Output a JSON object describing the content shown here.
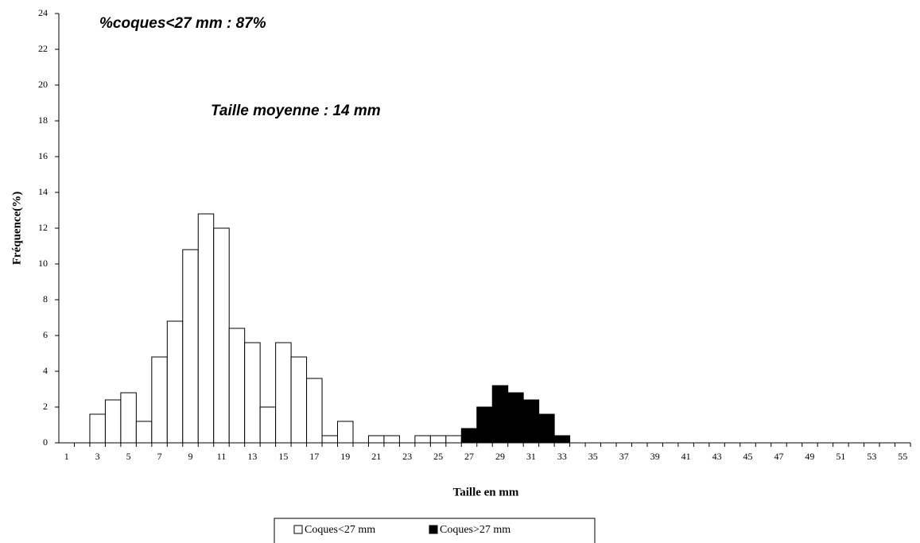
{
  "chart_data": {
    "type": "bar",
    "annotations": [
      "%coques<27 mm : 87%",
      "Taille moyenne : 14 mm"
    ],
    "x_label": "Taille en mm",
    "y_label": "Fréquence(%)",
    "categories": [
      1,
      null,
      3,
      null,
      5,
      null,
      7,
      null,
      9,
      null,
      11,
      null,
      13,
      null,
      15,
      null,
      17,
      null,
      19,
      null,
      21,
      null,
      23,
      null,
      25,
      null,
      27,
      null,
      29,
      null,
      31,
      null,
      33,
      null,
      35,
      null,
      37,
      null,
      39,
      null,
      41,
      null,
      43,
      null,
      45,
      null,
      47,
      null,
      49,
      null,
      51,
      null,
      53,
      null,
      55
    ],
    "series": [
      {
        "name": "Coques<27 mm",
        "color": "#ffffff",
        "values": [
          null,
          null,
          1.6,
          2.4,
          2.8,
          1.2,
          4.8,
          6.8,
          10.8,
          12.8,
          12,
          6.4,
          5.6,
          2,
          5.6,
          4.8,
          3.6,
          0.4,
          1.2,
          0,
          0.4,
          0.4,
          0,
          0.4,
          0.4,
          0.4,
          null,
          null,
          null,
          null,
          null,
          null,
          null,
          null,
          null,
          null,
          null,
          null,
          null,
          null,
          null,
          null,
          null,
          null,
          null,
          null,
          null,
          null,
          null,
          null,
          null,
          null,
          null,
          null,
          null
        ]
      },
      {
        "name": "Coques>27 mm",
        "color": "#000000",
        "values": [
          null,
          null,
          null,
          null,
          null,
          null,
          null,
          null,
          null,
          null,
          null,
          null,
          null,
          null,
          null,
          null,
          null,
          null,
          null,
          null,
          null,
          null,
          null,
          null,
          null,
          null,
          0.8,
          2,
          3.2,
          2.8,
          2.4,
          1.6,
          0.4,
          0,
          0,
          0,
          0,
          0,
          0,
          0,
          0,
          0,
          0,
          0,
          0,
          0,
          0,
          0,
          0,
          0,
          0,
          0,
          0,
          0,
          0
        ]
      }
    ],
    "ylim": [
      0,
      24
    ],
    "yticks": [
      0,
      2,
      4,
      6,
      8,
      10,
      12,
      14,
      16,
      18,
      20,
      22,
      24
    ],
    "grid": false
  }
}
